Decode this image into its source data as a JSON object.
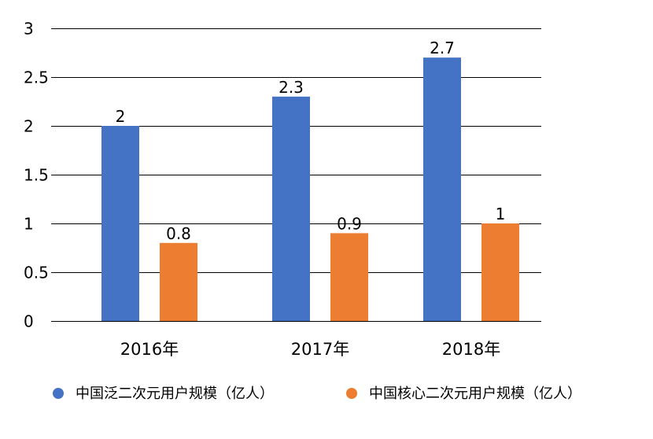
{
  "chart_data": {
    "type": "bar",
    "categories": [
      "2016年",
      "2017年",
      "2018年"
    ],
    "series": [
      {
        "name": "中国泛二次元用户规模（亿人）",
        "values": [
          2,
          2.3,
          2.7
        ],
        "labels": [
          "2",
          "2.3",
          "2.7"
        ],
        "color": "#4472C4"
      },
      {
        "name": "中国核心二次元用户规模（亿人）",
        "values": [
          0.8,
          0.9,
          1
        ],
        "labels": [
          "0.8",
          "0.9",
          "1"
        ],
        "color": "#ED7D31"
      }
    ],
    "yticks": [
      0,
      0.5,
      1,
      1.5,
      2,
      2.5,
      3
    ],
    "ytick_labels": [
      "0",
      "0.5",
      "1",
      "1.5",
      "2",
      "2.5",
      "3"
    ],
    "ylim": [
      0,
      3
    ],
    "grid": true,
    "legend_position": "bottom",
    "gridline_color": "#000000"
  }
}
